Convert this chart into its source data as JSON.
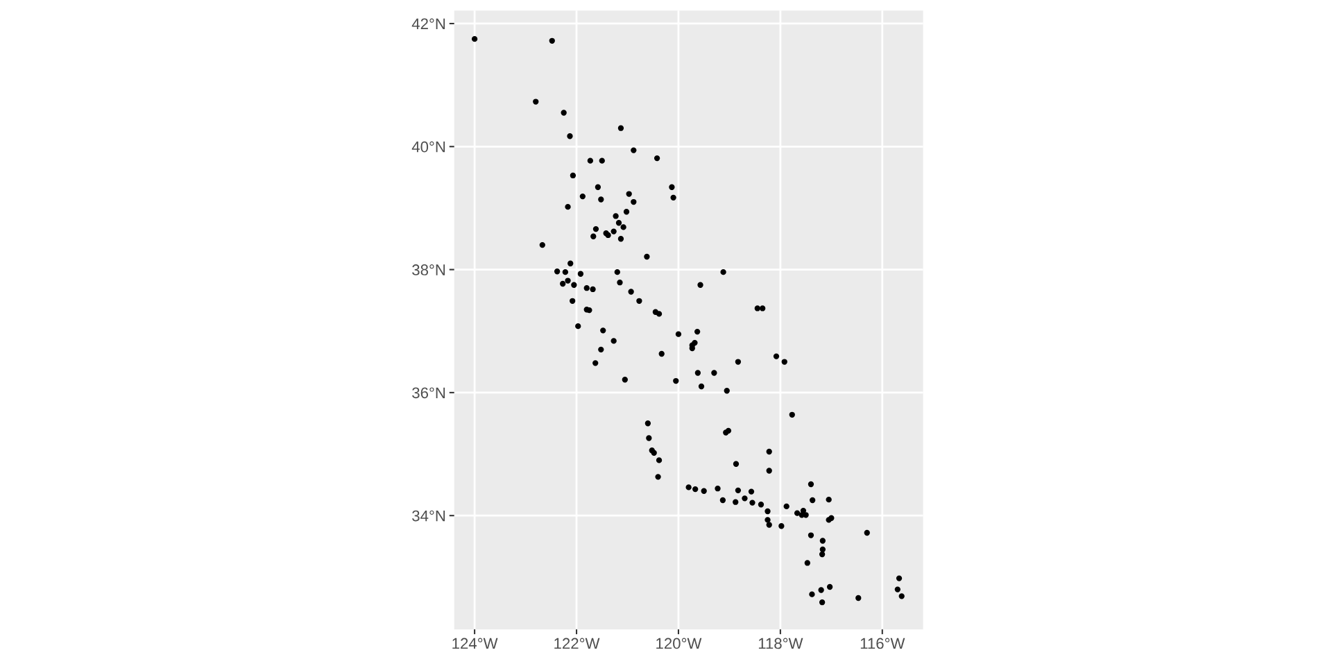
{
  "chart_data": {
    "type": "scatter",
    "marker": "circle",
    "grid": true,
    "xlim": [
      -124.4,
      -115.2
    ],
    "ylim": [
      32.15,
      42.21
    ],
    "xticks": [
      {
        "value": -124,
        "label": "124°W"
      },
      {
        "value": -122,
        "label": "122°W"
      },
      {
        "value": -120,
        "label": "120°W"
      },
      {
        "value": -118,
        "label": "118°W"
      },
      {
        "value": -116,
        "label": "116°W"
      }
    ],
    "yticks": [
      {
        "value": 34,
        "label": "34°N"
      },
      {
        "value": 36,
        "label": "36°N"
      },
      {
        "value": 38,
        "label": "38°N"
      },
      {
        "value": 40,
        "label": "40°N"
      },
      {
        "value": 42,
        "label": "42°N"
      }
    ],
    "series": [
      {
        "color": "#000000",
        "x": [
          -124.0,
          -122.48,
          -122.8,
          -122.25,
          -122.13,
          -121.13,
          -120.88,
          -120.42,
          -121.73,
          -121.5,
          -122.07,
          -121.58,
          -120.13,
          -121.88,
          -121.52,
          -120.97,
          -120.88,
          -120.1,
          -122.17,
          -121.02,
          -121.23,
          -121.17,
          -121.62,
          -121.08,
          -121.27,
          -121.42,
          -121.38,
          -121.67,
          -121.13,
          -122.67,
          -120.62,
          -122.12,
          -122.38,
          -122.22,
          -121.92,
          -121.2,
          -119.12,
          -122.17,
          -122.27,
          -122.05,
          -121.15,
          -119.57,
          -121.8,
          -121.68,
          -120.93,
          -120.77,
          -122.08,
          -121.8,
          -121.75,
          -120.45,
          -120.38,
          -118.45,
          -118.35,
          -121.97,
          -121.48,
          -120.0,
          -119.63,
          -119.68,
          -119.73,
          -119.73,
          -121.27,
          -120.33,
          -121.52,
          -118.08,
          -121.63,
          -118.83,
          -117.92,
          -119.62,
          -119.3,
          -121.05,
          -120.05,
          -119.55,
          -119.05,
          -117.77,
          -120.6,
          -120.58,
          -119.02,
          -119.07,
          -120.52,
          -120.48,
          -118.22,
          -120.38,
          -118.87,
          -118.22,
          -120.4,
          -117.4,
          -119.8,
          -119.67,
          -119.5,
          -119.23,
          -118.83,
          -118.57,
          -117.05,
          -117.37,
          -119.13,
          -118.7,
          -118.88,
          -118.55,
          -118.38,
          -117.88,
          -118.25,
          -117.55,
          -117.67,
          -117.58,
          -117.5,
          -117.0,
          -117.05,
          -118.25,
          -118.22,
          -117.98,
          -116.3,
          -117.4,
          -117.17,
          -117.17,
          -117.18,
          -117.47,
          -115.67,
          -115.7,
          -117.03,
          -117.2,
          -115.62,
          -117.38,
          -116.47,
          -117.18
        ],
        "values": [
          41.75,
          41.72,
          40.73,
          40.55,
          40.17,
          40.3,
          39.94,
          39.81,
          39.77,
          39.77,
          39.53,
          39.34,
          39.34,
          39.19,
          39.14,
          39.23,
          39.1,
          39.17,
          39.02,
          38.94,
          38.87,
          38.76,
          38.66,
          38.69,
          38.62,
          38.59,
          38.56,
          38.54,
          38.5,
          38.4,
          38.21,
          38.1,
          37.97,
          37.96,
          37.93,
          37.96,
          37.96,
          37.82,
          37.77,
          37.75,
          37.79,
          37.75,
          37.7,
          37.68,
          37.64,
          37.49,
          37.49,
          37.35,
          37.34,
          37.31,
          37.28,
          37.37,
          37.37,
          37.08,
          37.01,
          36.95,
          36.99,
          36.81,
          36.77,
          36.72,
          36.84,
          36.63,
          36.7,
          36.59,
          36.48,
          36.5,
          36.5,
          36.32,
          36.32,
          36.21,
          36.19,
          36.1,
          36.03,
          35.64,
          35.5,
          35.26,
          35.38,
          35.35,
          35.06,
          35.02,
          35.04,
          34.9,
          34.84,
          34.73,
          34.63,
          34.51,
          34.46,
          34.43,
          34.4,
          34.44,
          34.41,
          34.39,
          34.26,
          34.25,
          34.25,
          34.28,
          34.22,
          34.21,
          34.18,
          34.15,
          34.07,
          34.08,
          34.04,
          34.01,
          34.01,
          33.96,
          33.93,
          33.93,
          33.85,
          33.83,
          33.72,
          33.68,
          33.59,
          33.45,
          33.37,
          33.23,
          32.98,
          32.8,
          32.84,
          32.79,
          32.69,
          32.72,
          32.66,
          32.59
        ]
      }
    ]
  }
}
